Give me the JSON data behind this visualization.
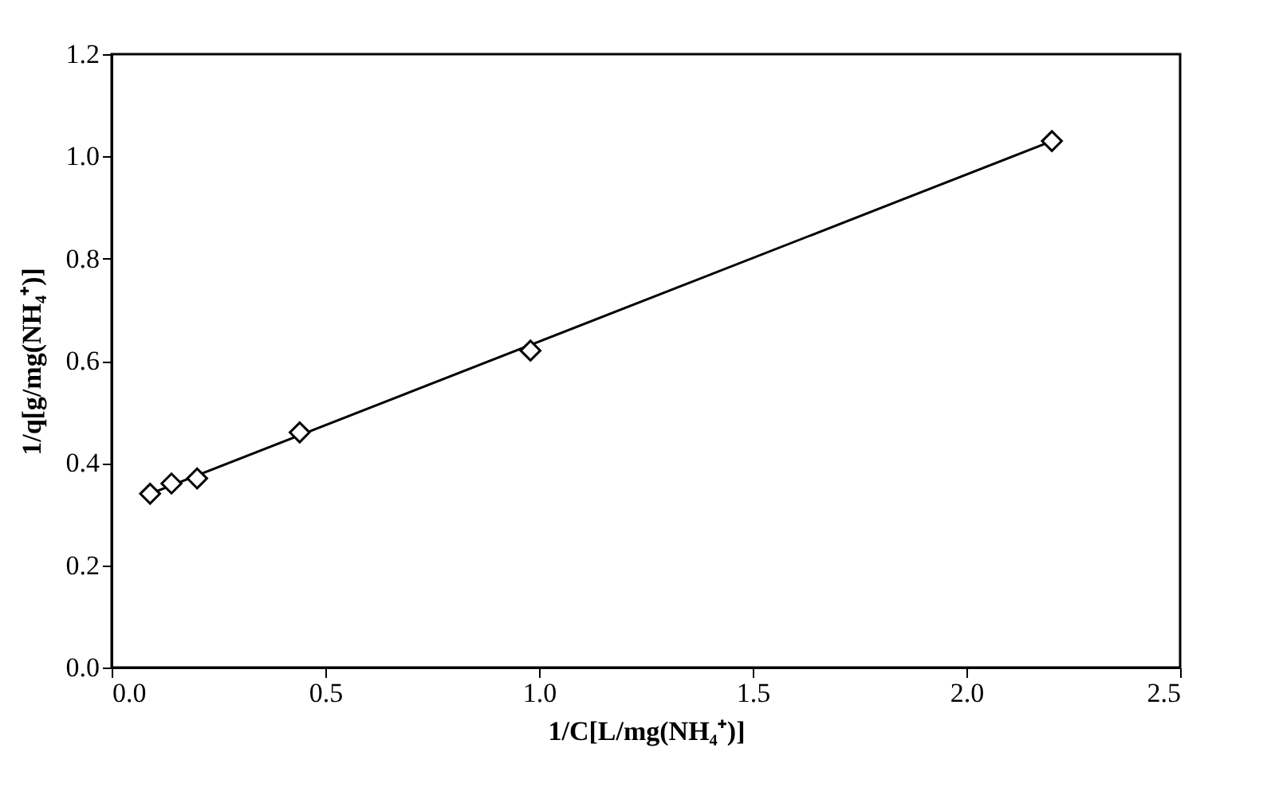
{
  "chart_data": {
    "type": "scatter",
    "xlabel": "1/C[L/mg(NH₄⁺)]",
    "ylabel": "1/q[g/mg(NH₄⁺)]",
    "xlim": [
      0,
      2.5
    ],
    "xticks": [
      {
        "value": 0,
        "label": "0.0"
      },
      0.5,
      {
        "value": 1,
        "label": "1.0"
      },
      1.5,
      {
        "value": 2,
        "label": "2.0"
      },
      2.5
    ],
    "ylim": [
      0,
      1.2
    ],
    "yticks": [
      {
        "value": 0,
        "label": "0.0"
      },
      0.2,
      0.4,
      0.6,
      0.8,
      {
        "value": 1,
        "label": "1.0"
      },
      1.2
    ],
    "grid": false,
    "series": [
      {
        "color": "#000000",
        "marker": "diamond",
        "x": [
          0.09,
          0.14,
          0.2,
          0.44,
          0.98,
          2.2
        ],
        "values": [
          0.34,
          0.36,
          0.37,
          0.46,
          0.62,
          1.03
        ]
      },
      {
        "type": "line",
        "color": "#000000",
        "x": [
          0.09,
          2.2
        ],
        "values": [
          0.34,
          1.03
        ],
        "marker": "none",
        "line_style": "solid"
      }
    ]
  }
}
